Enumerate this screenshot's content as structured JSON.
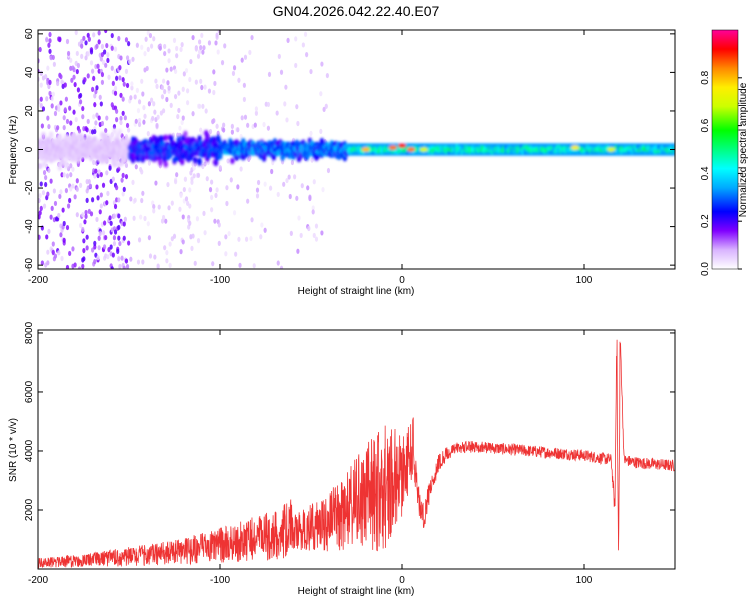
{
  "title": "GN04.2026.042.22.40.E07",
  "chart_data": [
    {
      "type": "heatmap",
      "title": "GN04.2026.042.22.40.E07",
      "xlabel": "Height of straight line (km)",
      "ylabel": "Frequency (Hz)",
      "xlim": [
        -200,
        150
      ],
      "ylim": [
        -62,
        62
      ],
      "x_ticks": [
        -200,
        -100,
        0,
        100
      ],
      "y_ticks": [
        60,
        40,
        20,
        0,
        -20,
        -40,
        -60
      ],
      "colorbar": {
        "label": "Normalized spectral amplitude",
        "range": [
          0,
          1
        ],
        "ticks": [
          0.0,
          0.2,
          0.4,
          0.6,
          0.8
        ],
        "colors": [
          "#ffffff",
          "#e6ccff",
          "#8000ff",
          "#0000ff",
          "#00ffff",
          "#00ff00",
          "#ffff00",
          "#ff8000",
          "#ff0000",
          "#ff00a0"
        ]
      },
      "bands": [
        {
          "x_from": -200,
          "x_to": -150,
          "freq_halfwidth": 62,
          "amplitude": 0.1
        },
        {
          "x_from": -150,
          "x_to": -100,
          "freq_halfwidth": 12,
          "amplitude": 0.25
        },
        {
          "x_from": -100,
          "x_to": -30,
          "freq_halfwidth": 8,
          "amplitude": 0.3
        },
        {
          "x_from": -30,
          "x_to": 150,
          "freq_halfwidth": 3,
          "amplitude": 0.45
        }
      ],
      "hot_spots": [
        {
          "x": -20,
          "f": 0,
          "amplitude": 0.8
        },
        {
          "x": -5,
          "f": 1,
          "amplitude": 0.85
        },
        {
          "x": 0,
          "f": 2,
          "amplitude": 0.9
        },
        {
          "x": 5,
          "f": 0,
          "amplitude": 0.85
        },
        {
          "x": 12,
          "f": 0,
          "amplitude": 0.7
        },
        {
          "x": 95,
          "f": 1,
          "amplitude": 0.75
        },
        {
          "x": 115,
          "f": 0,
          "amplitude": 0.7
        }
      ]
    },
    {
      "type": "line",
      "xlabel": "Height of straight line (km)",
      "ylabel": "SNR (10 * v/v)",
      "xlim": [
        -200,
        150
      ],
      "ylim": [
        0,
        8100
      ],
      "x_ticks": [
        -200,
        -100,
        0,
        100
      ],
      "y_ticks": [
        2000,
        4000,
        6000,
        8000
      ],
      "color": "#ee3333",
      "series": [
        {
          "name": "SNR",
          "x": [
            -200,
            -175,
            -150,
            -125,
            -100,
            -90,
            -80,
            -70,
            -60,
            -50,
            -40,
            -35,
            -30,
            -25,
            -20,
            -15,
            -10,
            -5,
            0,
            3,
            5,
            8,
            10,
            12,
            15,
            20,
            25,
            30,
            40,
            50,
            60,
            70,
            80,
            90,
            100,
            110,
            115,
            117,
            118,
            119,
            120,
            122,
            125,
            130,
            140,
            150
          ],
          "values": [
            150,
            200,
            300,
            450,
            700,
            800,
            900,
            1000,
            1200,
            1400,
            1600,
            1800,
            2000,
            2200,
            2400,
            2600,
            2800,
            3000,
            3200,
            3600,
            4000,
            3000,
            2000,
            1800,
            2600,
            3600,
            3900,
            4100,
            4150,
            4100,
            4050,
            4000,
            3950,
            3900,
            3850,
            3750,
            3700,
            2000,
            7500,
            400,
            7800,
            3700,
            3650,
            3600,
            3550,
            3500
          ],
          "noise": [
            150,
            200,
            300,
            300,
            350,
            400,
            450,
            500,
            600,
            800,
            1000,
            1200,
            1400,
            1600,
            1800,
            2000,
            2200,
            1800,
            1500,
            1200,
            1000,
            800,
            600,
            500,
            400,
            300,
            250,
            200,
            200,
            200,
            200,
            200,
            200,
            200,
            200,
            200,
            200,
            300,
            300,
            300,
            300,
            200,
            200,
            200,
            200,
            200
          ]
        }
      ],
      "annotations": [
        {
          "x": 6,
          "value": 5500
        },
        {
          "x": 118,
          "value": 7800
        },
        {
          "x": 120,
          "value": 8100
        }
      ]
    }
  ]
}
